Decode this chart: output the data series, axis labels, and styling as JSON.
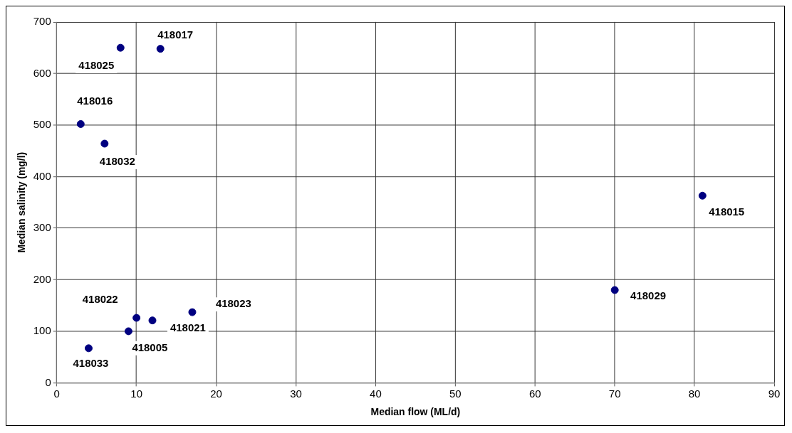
{
  "chart_data": {
    "type": "scatter",
    "xlabel": "Median flow (ML/d)",
    "ylabel": "Median salinity (mg/l)",
    "x": [
      8,
      13,
      3,
      6,
      10,
      12,
      17,
      9,
      4,
      70,
      81
    ],
    "series": [
      {
        "color": "#000080",
        "values": [
          650,
          648,
          502,
          464,
          126,
          121,
          137,
          100,
          67,
          180,
          363
        ]
      }
    ],
    "annotations": [
      {
        "text": "418025",
        "x": 8,
        "y": 650
      },
      {
        "text": "418017",
        "x": 13,
        "y": 648
      },
      {
        "text": "418016",
        "x": 3,
        "y": 502
      },
      {
        "text": "418032",
        "x": 6,
        "y": 464
      },
      {
        "text": "418022",
        "x": 10,
        "y": 126
      },
      {
        "text": "418021",
        "x": 12,
        "y": 121
      },
      {
        "text": "418023",
        "x": 17,
        "y": 137
      },
      {
        "text": "418005",
        "x": 9,
        "y": 100
      },
      {
        "text": "418033",
        "x": 4,
        "y": 67
      },
      {
        "text": "418029",
        "x": 70,
        "y": 180
      },
      {
        "text": "418015",
        "x": 81,
        "y": 363
      }
    ],
    "xlim": [
      0,
      90
    ],
    "xticks": [
      0,
      10,
      20,
      30,
      40,
      50,
      60,
      70,
      80,
      90
    ],
    "ylim": [
      0,
      700
    ],
    "yticks": [
      0,
      100,
      200,
      300,
      400,
      500,
      600,
      700
    ],
    "grid": true,
    "legend": false,
    "marker": "circle"
  }
}
